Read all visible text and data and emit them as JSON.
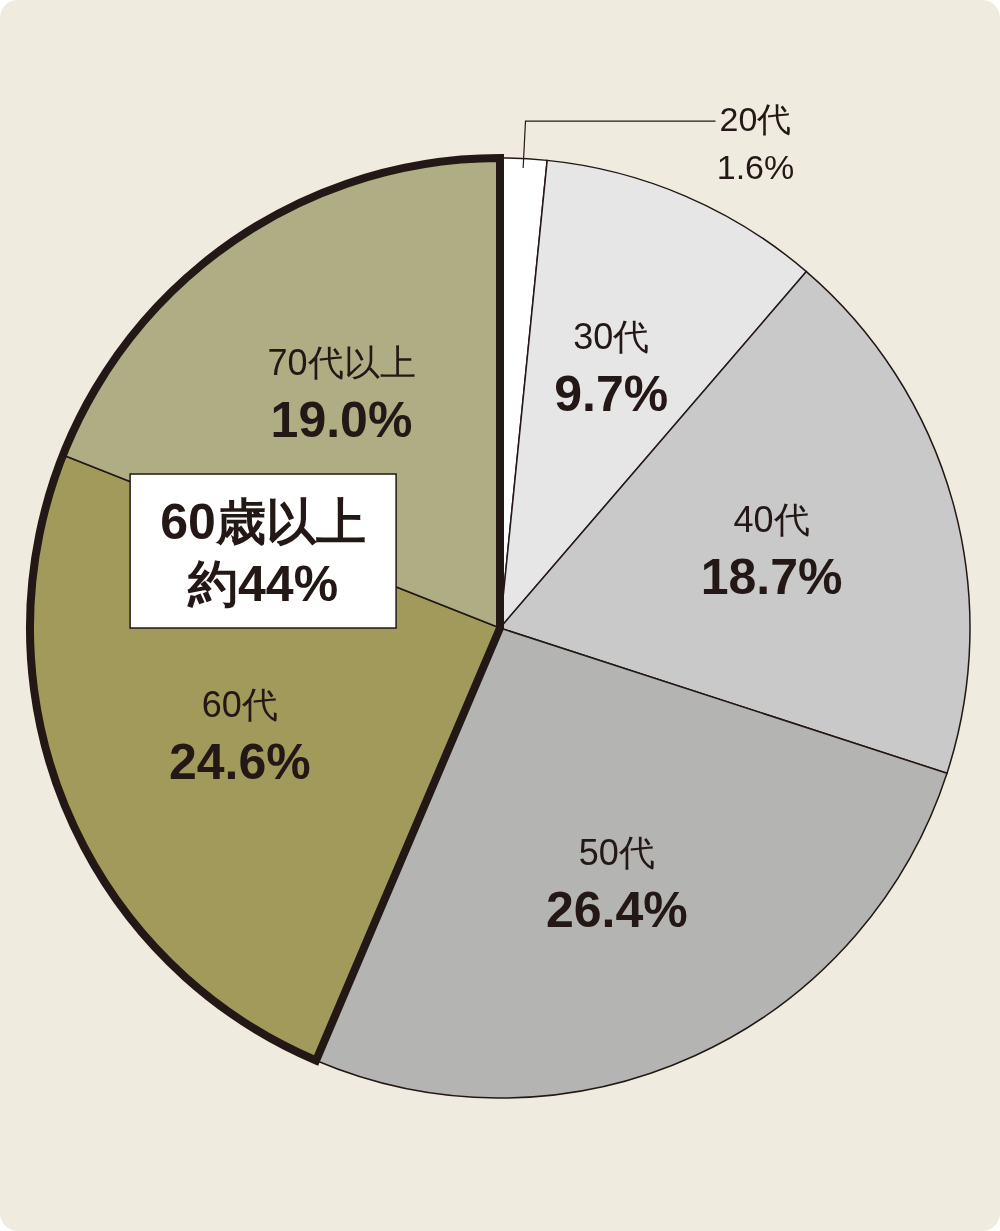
{
  "chart_data": {
    "type": "pie",
    "categories": [
      "20代",
      "30代",
      "40代",
      "50代",
      "60代",
      "70代以上"
    ],
    "values": [
      1.6,
      9.7,
      18.7,
      26.4,
      24.6,
      19.0
    ],
    "colors": [
      "#ffffff",
      "#e6e6e6",
      "#c9c9c9",
      "#b4b5b3",
      "#a29a5b",
      "#afad84"
    ],
    "value_labels": [
      "1.6%",
      "9.7%",
      "18.7%",
      "26.4%",
      "24.6%",
      "19.0%"
    ],
    "annotations": [
      "60歳以上",
      "約44%"
    ]
  }
}
